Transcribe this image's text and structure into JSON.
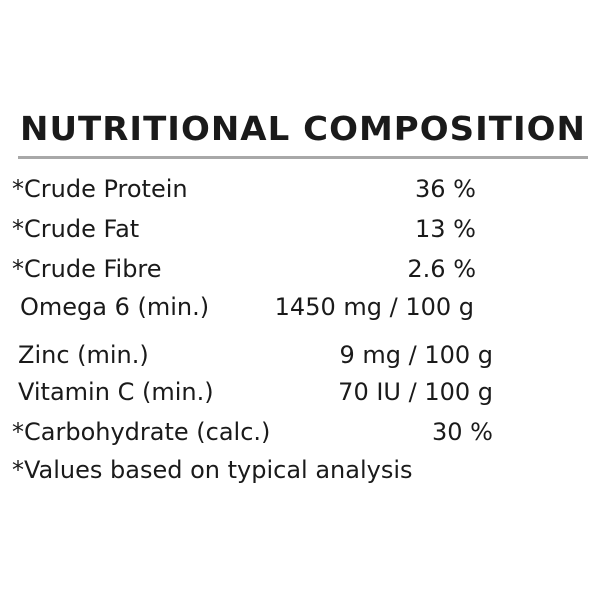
{
  "title": "NUTRITIONAL COMPOSITION",
  "table": {
    "rows": [
      [
        "*Crude Protein",
        "36 %"
      ],
      [
        "*Crude Fat",
        "13 %"
      ],
      [
        "*Crude Fibre",
        "2.6 %"
      ],
      [
        "Omega 6 (min.)",
        "1450 mg / 100 g"
      ],
      [
        "Zinc (min.)",
        "9 mg / 100 g"
      ],
      [
        "Vitamin C (min.)",
        "70 IU / 100 g"
      ],
      [
        "*Carbohydrate (calc.)",
        "30 %"
      ]
    ]
  },
  "footnote": "*Values based on typical analysis"
}
